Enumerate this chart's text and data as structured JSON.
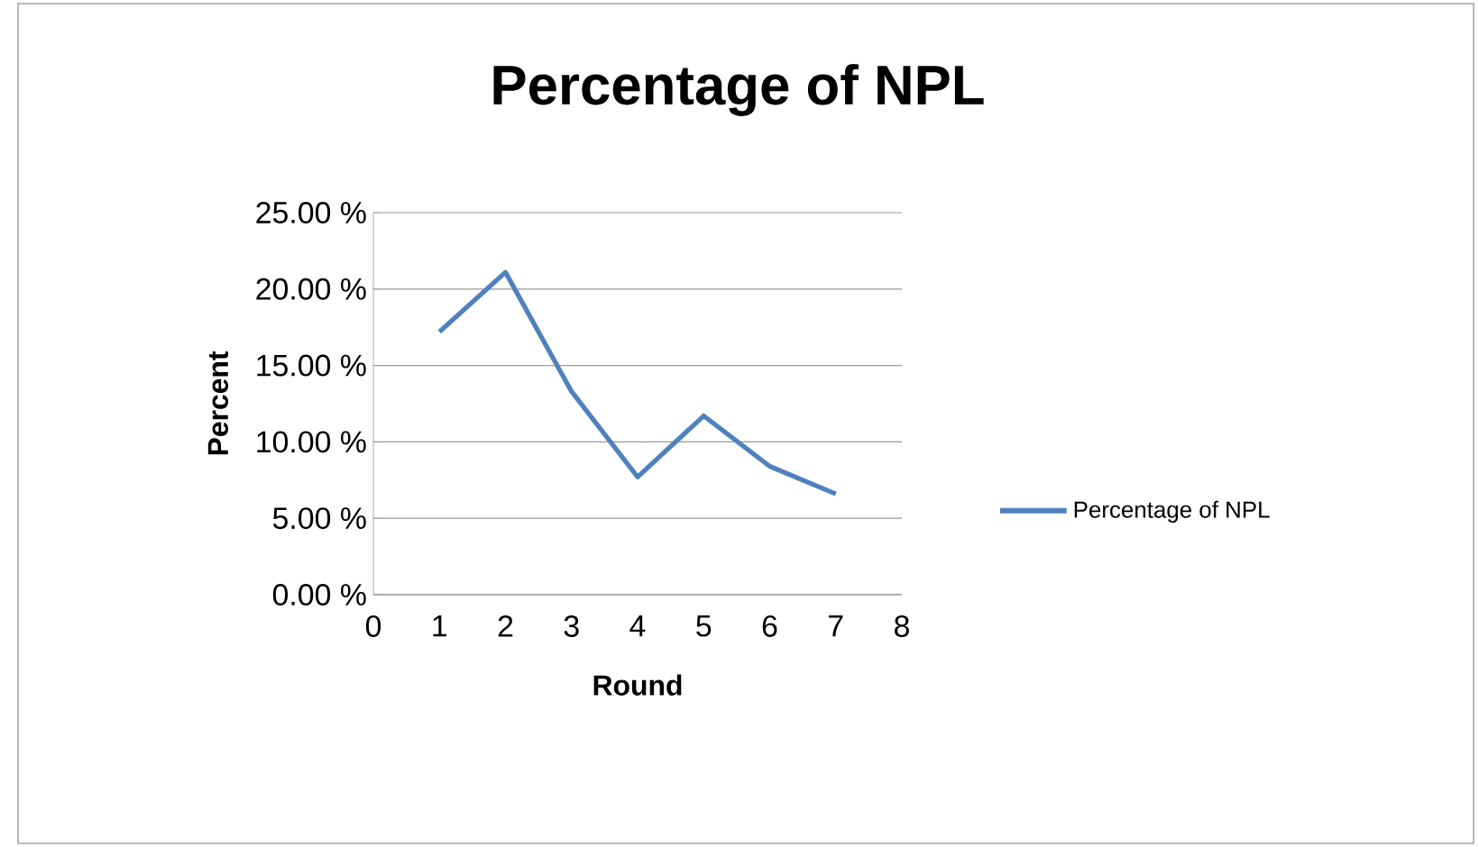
{
  "chart_data": {
    "type": "line",
    "title": "Percentage of NPL",
    "xlabel": "Round",
    "ylabel": "Percent",
    "x": [
      1,
      2,
      3,
      4,
      5,
      6,
      7
    ],
    "series": [
      {
        "name": "Percentage of NPL",
        "color": "#4f81bd",
        "values": [
          17.2,
          21.1,
          13.3,
          7.7,
          11.7,
          8.4,
          6.6
        ]
      }
    ],
    "xlim": [
      0,
      8
    ],
    "xticks": [
      0,
      1,
      2,
      3,
      4,
      5,
      6,
      7,
      8
    ],
    "ylim": [
      0,
      25
    ],
    "yticks": [
      {
        "value": 0,
        "label": "0.00 %"
      },
      {
        "value": 5,
        "label": "5.00 %"
      },
      {
        "value": 10,
        "label": "10.00 %"
      },
      {
        "value": 15,
        "label": "15.00 %"
      },
      {
        "value": 20,
        "label": "20.00 %"
      },
      {
        "value": 25,
        "label": "25.00 %"
      }
    ],
    "grid": "y",
    "legend": "right",
    "marker": "none",
    "line_style": "solid"
  }
}
